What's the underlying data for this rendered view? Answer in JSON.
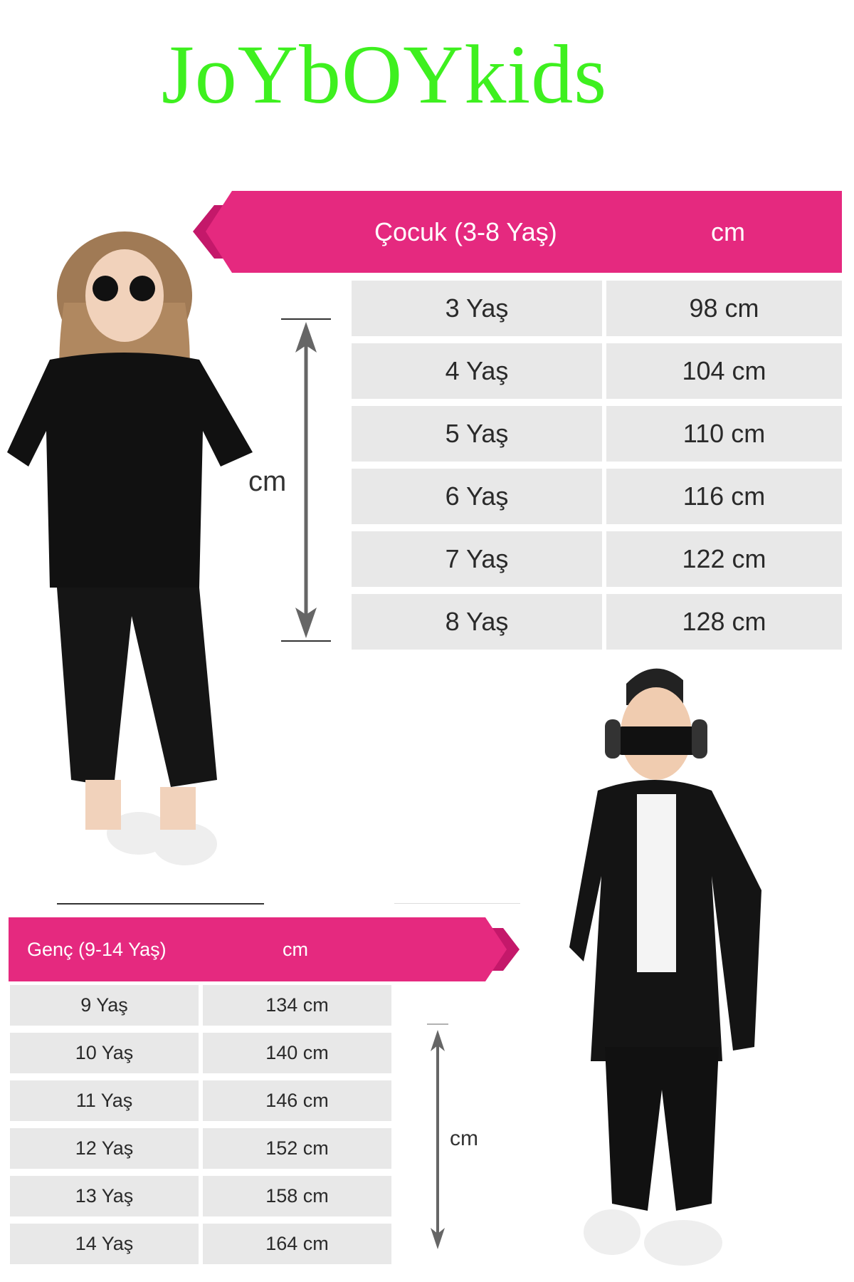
{
  "brand": {
    "logo_text": "JoYbOYkids",
    "color": "#3ef01f"
  },
  "colors": {
    "header_pink": "#e5297f",
    "header_dark": "#c4186a",
    "row_gray": "#e8e8e8"
  },
  "child_table": {
    "title": "Çocuk (3-8 Yaş)",
    "unit_header": "cm",
    "rows": [
      {
        "age": "3 Yaş",
        "height": "98 cm"
      },
      {
        "age": "4 Yaş",
        "height": "104 cm"
      },
      {
        "age": "5 Yaş",
        "height": "110 cm"
      },
      {
        "age": "6 Yaş",
        "height": "116 cm"
      },
      {
        "age": "7 Yaş",
        "height": "122 cm"
      },
      {
        "age": "8 Yaş",
        "height": "128 cm"
      }
    ]
  },
  "teen_table": {
    "title": "Genç (9-14 Yaş)",
    "unit_header": "cm",
    "rows": [
      {
        "age": "9 Yaş",
        "height": "134 cm"
      },
      {
        "age": "10 Yaş",
        "height": "140 cm"
      },
      {
        "age": "11 Yaş",
        "height": "146 cm"
      },
      {
        "age": "12 Yaş",
        "height": "152 cm"
      },
      {
        "age": "13 Yaş",
        "height": "158 cm"
      },
      {
        "age": "14 Yaş",
        "height": "164 cm"
      }
    ]
  },
  "measure_labels": {
    "top": "cm",
    "bottom": "cm"
  }
}
